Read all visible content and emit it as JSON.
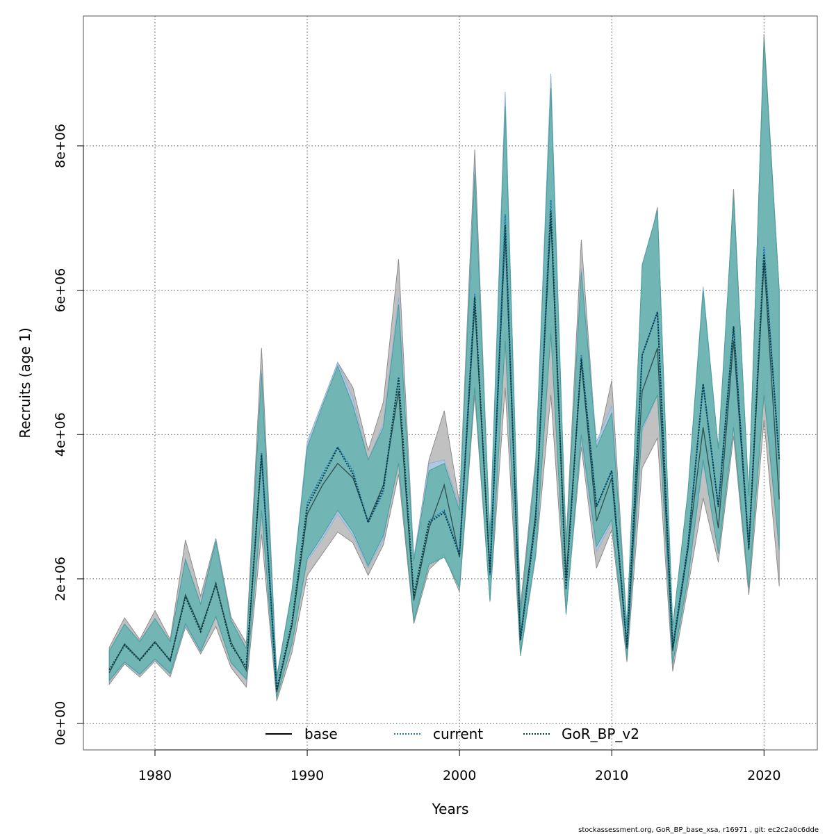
{
  "chart_data": {
    "type": "line",
    "xlabel": "Years",
    "ylabel": "Recruits (age 1)",
    "xlim": [
      1975.3,
      2023.5
    ],
    "ylim": [
      -370000,
      9800000
    ],
    "x_ticks": [
      1980,
      1990,
      2000,
      2010,
      2020
    ],
    "x_tick_labels": [
      "1980",
      "1990",
      "2000",
      "2010",
      "2020"
    ],
    "y_ticks": [
      0,
      2000000,
      4000000,
      6000000,
      8000000
    ],
    "y_tick_labels": [
      "0e+00",
      "2e+06",
      "4e+06",
      "6e+06",
      "8e+06"
    ],
    "grid": true,
    "legend_position": "bottom",
    "footer": "stockassessment.org, GoR_BP_base_xsa, r16971 , git: ec2c2a0c6dde",
    "x": [
      1977,
      1978,
      1979,
      1980,
      1981,
      1982,
      1983,
      1984,
      1985,
      1986,
      1987,
      1988,
      1989,
      1990,
      1991,
      1992,
      1993,
      1994,
      1995,
      1996,
      1997,
      1998,
      1999,
      2000,
      2001,
      2002,
      2003,
      2004,
      2005,
      2006,
      2007,
      2008,
      2009,
      2010,
      2011,
      2012,
      2013,
      2014,
      2015,
      2016,
      2017,
      2018,
      2019,
      2020,
      2021
    ],
    "series": [
      {
        "name": "base",
        "color": "#000000",
        "dash": "solid",
        "band_fill": "#bebebe",
        "band_stroke": "#8c8c8c",
        "values": [
          700000,
          1100000,
          880000,
          1130000,
          860000,
          1780000,
          1300000,
          1920000,
          1120000,
          730000,
          3700000,
          430000,
          1350000,
          2900000,
          3300000,
          3600000,
          3400000,
          2800000,
          3300000,
          4600000,
          1700000,
          2700000,
          3300000,
          2300000,
          5800000,
          2100000,
          6800000,
          1180000,
          2900000,
          7000000,
          2000000,
          5000000,
          2800000,
          3400000,
          1030000,
          4600000,
          5200000,
          1000000,
          2400000,
          4100000,
          2700000,
          5300000,
          2400000,
          6400000,
          3100000
        ],
        "lower": [
          540000,
          820000,
          640000,
          860000,
          640000,
          1330000,
          960000,
          1340000,
          770000,
          500000,
          2620000,
          310000,
          980000,
          2050000,
          2350000,
          2650000,
          2500000,
          2050000,
          2470000,
          3450000,
          1380000,
          2130000,
          2330000,
          1820000,
          4550000,
          1700000,
          4650000,
          930000,
          2300000,
          4550000,
          1520000,
          3830000,
          2150000,
          2680000,
          850000,
          3540000,
          3950000,
          720000,
          1880000,
          3120000,
          2230000,
          3980000,
          1780000,
          4200000,
          1900000
        ],
        "upper": [
          1050000,
          1460000,
          1160000,
          1560000,
          1160000,
          2540000,
          1760000,
          2560000,
          1470000,
          1110000,
          5200000,
          650000,
          1800000,
          3850000,
          4350000,
          5000000,
          4650000,
          3780000,
          4450000,
          6430000,
          2270000,
          3650000,
          4330000,
          3050000,
          7950000,
          2550000,
          8600000,
          1620000,
          3650000,
          8580000,
          2510000,
          6700000,
          3780000,
          4750000,
          1330000,
          6200000,
          7150000,
          1310000,
          3200000,
          5600000,
          3530000,
          7400000,
          3080000,
          9550000,
          6000000
        ]
      },
      {
        "name": "current",
        "color": "#1f77b4",
        "dash": "dotted",
        "band_fill": "#adc8e6",
        "band_stroke": "#8fb0d8",
        "values": [
          740000,
          1080000,
          870000,
          1120000,
          870000,
          1750000,
          1270000,
          1930000,
          1080000,
          780000,
          3750000,
          470000,
          1400000,
          3050000,
          3450000,
          3830000,
          3500000,
          2780000,
          3200000,
          4800000,
          1780000,
          2800000,
          2950000,
          2350000,
          5950000,
          2050000,
          7050000,
          1150000,
          2800000,
          7250000,
          1850000,
          5100000,
          3000000,
          3500000,
          1080000,
          5100000,
          5700000,
          1050000,
          2450000,
          4700000,
          3000000,
          5500000,
          2450000,
          6600000,
          3650000
        ],
        "lower": [
          580000,
          840000,
          670000,
          880000,
          680000,
          1360000,
          990000,
          1470000,
          830000,
          600000,
          2900000,
          360000,
          1100000,
          2250000,
          2550000,
          2900000,
          2600000,
          2150000,
          2550000,
          3650000,
          1430000,
          2200000,
          2350000,
          1880000,
          4700000,
          1680000,
          5400000,
          950000,
          2300000,
          5500000,
          1500000,
          3950000,
          2380000,
          2780000,
          900000,
          4050000,
          4550000,
          820000,
          1980000,
          3600000,
          2400000,
          4150000,
          1900000,
          4750000,
          2450000
        ],
        "upper": [
          1000000,
          1380000,
          1130000,
          1450000,
          1130000,
          2280000,
          1660000,
          2540000,
          1430000,
          1040000,
          4900000,
          640000,
          1850000,
          3900000,
          4450000,
          5000000,
          4500000,
          3650000,
          4150000,
          5900000,
          2300000,
          3600000,
          3650000,
          3000000,
          7700000,
          2600000,
          8750000,
          1500000,
          3600000,
          9000000,
          2450000,
          6300000,
          3900000,
          4400000,
          1350000,
          6350000,
          7100000,
          1330000,
          3200000,
          6050000,
          3800000,
          7200000,
          3200000,
          9400000,
          6000000
        ]
      },
      {
        "name": "GoR_BP_v2",
        "color": "#003b3b",
        "dash": "dotted",
        "band_fill": "#66b2ad",
        "band_stroke": "#4a9e99",
        "values": [
          740000,
          1080000,
          870000,
          1120000,
          870000,
          1750000,
          1270000,
          1930000,
          1080000,
          780000,
          3720000,
          460000,
          1390000,
          3000000,
          3400000,
          3820000,
          3450000,
          2780000,
          3250000,
          4780000,
          1760000,
          2780000,
          2920000,
          2330000,
          5900000,
          2080000,
          6900000,
          1150000,
          2820000,
          7100000,
          1870000,
          5050000,
          3000000,
          3500000,
          1060000,
          5100000,
          5700000,
          1050000,
          2450000,
          4700000,
          3000000,
          5500000,
          2420000,
          6500000,
          3650000
        ],
        "lower": [
          590000,
          850000,
          680000,
          890000,
          690000,
          1380000,
          1000000,
          1480000,
          840000,
          610000,
          2950000,
          360000,
          1100000,
          2280000,
          2600000,
          2950000,
          2650000,
          2180000,
          2600000,
          3600000,
          1420000,
          2200000,
          2300000,
          1880000,
          4650000,
          1700000,
          5300000,
          960000,
          2350000,
          5400000,
          1520000,
          4000000,
          2450000,
          2820000,
          900000,
          4100000,
          4550000,
          820000,
          2000000,
          3650000,
          2350000,
          4100000,
          1880000,
          4550000,
          2400000
        ],
        "upper": [
          1000000,
          1370000,
          1130000,
          1450000,
          1130000,
          2270000,
          1650000,
          2520000,
          1420000,
          1030000,
          4850000,
          630000,
          1830000,
          3820000,
          4400000,
          4950000,
          4400000,
          3650000,
          4100000,
          5800000,
          2250000,
          3500000,
          3600000,
          2950000,
          7600000,
          2580000,
          8550000,
          1510000,
          3550000,
          8800000,
          2430000,
          6250000,
          3820000,
          4300000,
          1340000,
          6350000,
          7100000,
          1340000,
          3200000,
          6000000,
          3800000,
          7300000,
          3150000,
          9450000,
          6000000
        ]
      }
    ]
  }
}
